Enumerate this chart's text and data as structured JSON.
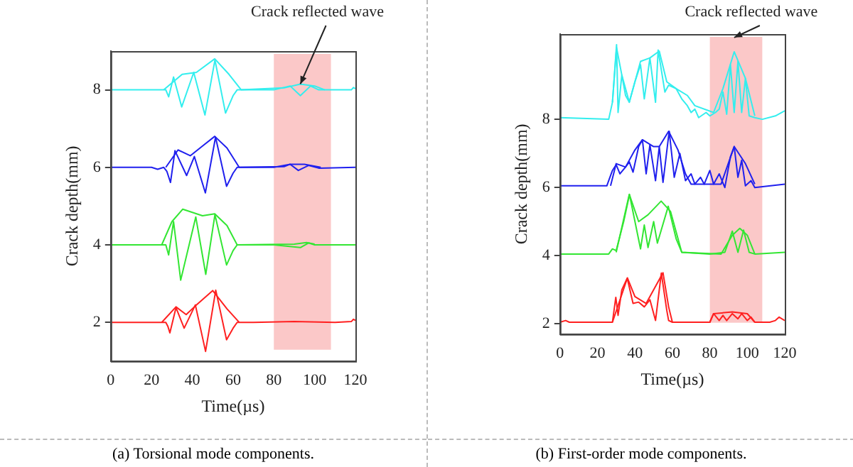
{
  "chart_data": [
    {
      "type": "line",
      "xlabel": "Time(µs)",
      "ylabel": "Crack depth(mm)",
      "xlim": [
        0,
        120
      ],
      "xticks": [
        0,
        20,
        40,
        60,
        80,
        100,
        120
      ],
      "ylim": [
        1,
        9
      ],
      "yticks": [
        2,
        4,
        6,
        8
      ],
      "grid": false,
      "legend": false,
      "marker": "none",
      "line_style": "solid",
      "bands": [
        {
          "axis": "x",
          "from": 80,
          "to": 108,
          "color": "#fbc8c8"
        }
      ],
      "annotations": [
        {
          "text": "Crack reflected wave",
          "x": 93,
          "y": 8.15
        },
        "(a) Torsional mode components."
      ],
      "series": [
        {
          "color": "#ff2020",
          "x": [
            0,
            25,
            27,
            28,
            29,
            32,
            36,
            41.5,
            46.5,
            51.5,
            56.8,
            60,
            62,
            70,
            90,
            110,
            118,
            119,
            120
          ],
          "values": [
            2,
            2,
            2,
            1.9,
            1.73,
            2.38,
            1.85,
            2.45,
            1.25,
            2.83,
            1.55,
            1.85,
            2,
            2,
            2.02,
            2,
            2.02,
            2.08,
            2.05
          ]
        },
        {
          "color": "#ff2020",
          "x": [
            25,
            32,
            37,
            41,
            50,
            57,
            63
          ],
          "values": [
            2,
            2.4,
            2.2,
            2.4,
            2.82,
            2.35,
            2
          ]
        },
        {
          "color": "#33e633",
          "x": [
            0,
            25,
            27,
            28.4,
            30.8,
            34.3,
            41.7,
            46.6,
            51.1,
            56.8,
            60,
            62,
            80,
            93,
            97,
            100,
            120
          ],
          "values": [
            4,
            4,
            4,
            3.74,
            4.6,
            3.09,
            4.72,
            3.24,
            4.78,
            3.48,
            3.85,
            4,
            4,
            3.93,
            4.05,
            4,
            4
          ]
        },
        {
          "color": "#33e633",
          "x": [
            25,
            30,
            35.3,
            45,
            51,
            57,
            62,
            90,
            96,
            100
          ],
          "values": [
            4,
            4.6,
            4.92,
            4.75,
            4.8,
            4.5,
            4,
            4.02,
            4.06,
            4.02
          ]
        },
        {
          "color": "#2020ee",
          "x": [
            0,
            20,
            23,
            26,
            27.5,
            29.3,
            31.5,
            37.2,
            41,
            46.4,
            51.4,
            56.8,
            60,
            62,
            80,
            88,
            92,
            97,
            102,
            120
          ],
          "values": [
            6,
            6,
            5.95,
            6,
            5.9,
            5.61,
            6.43,
            5.79,
            6.28,
            5.34,
            6.78,
            5.51,
            5.85,
            6,
            6,
            6.08,
            5.92,
            6.05,
            5.98,
            6
          ]
        },
        {
          "color": "#2020ee",
          "x": [
            27,
            33,
            39,
            45,
            51,
            57,
            63,
            85,
            88,
            95,
            103
          ],
          "values": [
            6,
            6.45,
            6.3,
            6.55,
            6.8,
            6.5,
            6,
            6.02,
            6.08,
            6.08,
            6
          ]
        },
        {
          "color": "#33eeee",
          "x": [
            0,
            25,
            27,
            28.4,
            30.8,
            34.8,
            40.7,
            46.2,
            51.1,
            56.3,
            60,
            62,
            80,
            88,
            93,
            98,
            102,
            118,
            119,
            120
          ],
          "values": [
            8,
            8,
            8,
            7.82,
            8.33,
            7.56,
            8.45,
            7.35,
            8.77,
            7.4,
            7.85,
            8,
            8,
            8.1,
            7.85,
            8.1,
            8,
            8,
            8.06,
            8.03
          ]
        },
        {
          "color": "#33eeee",
          "x": [
            26,
            35,
            42,
            51,
            58,
            64,
            85,
            93,
            100,
            105
          ],
          "values": [
            8,
            8.4,
            8.45,
            8.8,
            8.4,
            8,
            8.05,
            8.15,
            8.1,
            8
          ]
        }
      ]
    },
    {
      "type": "line",
      "xlabel": "Time(µs)",
      "ylabel": "Crack depth(mm)",
      "xlim": [
        0,
        120
      ],
      "xticks": [
        0,
        20,
        40,
        60,
        80,
        100,
        120
      ],
      "ylim": [
        1.7,
        10.5
      ],
      "yticks": [
        2,
        4,
        6,
        8
      ],
      "grid": false,
      "legend": false,
      "marker": "none",
      "line_style": "solid",
      "bands": [
        {
          "axis": "x",
          "from": 80,
          "to": 108,
          "color": "#fbc8c8"
        }
      ],
      "annotations": [
        {
          "text": "Crack reflected wave",
          "x": 93,
          "y": 10.4
        },
        "(b) First-order mode components."
      ],
      "series": [
        {
          "color": "#ff2020",
          "x": [
            0,
            3,
            5,
            28,
            29.8,
            31,
            33,
            35.9,
            39,
            42,
            45,
            48,
            51,
            54.1,
            57,
            58,
            60,
            80,
            82,
            85,
            87,
            89,
            92,
            95,
            97,
            100,
            102,
            104,
            112,
            115,
            117,
            120
          ],
          "values": [
            2.05,
            2.1,
            2.05,
            2.05,
            2.78,
            2.25,
            3,
            3.34,
            2.6,
            2.64,
            2.5,
            2.71,
            2.1,
            3.49,
            2.4,
            2.1,
            2.05,
            2.05,
            2.3,
            2.1,
            2.25,
            2.1,
            2.3,
            2.15,
            2.3,
            2.1,
            2.2,
            2.05,
            2.05,
            2.1,
            2.2,
            2.1
          ]
        },
        {
          "color": "#ff2020",
          "x": [
            28,
            36,
            40,
            46,
            55,
            58,
            60,
            80,
            82,
            92,
            100,
            104
          ],
          "values": [
            2.05,
            3.35,
            2.8,
            2.6,
            3.5,
            2.5,
            2.05,
            2.05,
            2.3,
            2.35,
            2.3,
            2.05
          ]
        },
        {
          "color": "#33e633",
          "x": [
            0,
            26,
            28,
            30,
            34,
            37.1,
            43,
            45,
            47,
            50,
            52,
            57.8,
            62,
            65,
            80,
            88,
            92,
            95,
            98,
            101,
            104,
            120
          ],
          "values": [
            4.05,
            4.05,
            4.2,
            4.15,
            5,
            5.79,
            4.2,
            4.9,
            4.24,
            5,
            4.37,
            5.45,
            4.5,
            4.1,
            4.05,
            4.1,
            4.72,
            4.1,
            4.75,
            4.1,
            4.05,
            4.1
          ]
        },
        {
          "color": "#33e633",
          "x": [
            30,
            37,
            42,
            47,
            54,
            59,
            63,
            65,
            86,
            92,
            96,
            100,
            104
          ],
          "values": [
            4.1,
            5.8,
            5,
            5.2,
            5.6,
            5.3,
            4.5,
            4.1,
            4.05,
            4.6,
            4.8,
            4.6,
            4.05
          ]
        },
        {
          "color": "#2020ee",
          "x": [
            0,
            25,
            28,
            30,
            32,
            35,
            37,
            39,
            42,
            44,
            46,
            48,
            51,
            53,
            55,
            58.3,
            61,
            64,
            67,
            70,
            72,
            75,
            77,
            80,
            82,
            85,
            88,
            91,
            93,
            95,
            97,
            99,
            102,
            104,
            120
          ],
          "values": [
            6.05,
            6.05,
            6.5,
            6.67,
            6.4,
            6.6,
            6.75,
            6.45,
            7.2,
            7.4,
            6.4,
            7.25,
            6.2,
            7.2,
            6.15,
            7.65,
            6.3,
            7,
            6.2,
            6.4,
            6.1,
            6.3,
            6.1,
            6.5,
            6.1,
            6.4,
            6,
            6.9,
            7.2,
            6.3,
            6.8,
            6.05,
            6.2,
            6,
            6.1
          ]
        },
        {
          "color": "#2020ee",
          "x": [
            27,
            30,
            35,
            40,
            44,
            50,
            53,
            58,
            63,
            67,
            70,
            86,
            93,
            99,
            104
          ],
          "values": [
            6.05,
            6.7,
            6.6,
            7.1,
            7.4,
            7.2,
            7.2,
            7.65,
            7.1,
            6.4,
            6.1,
            6.1,
            7.2,
            6.7,
            6.1
          ]
        },
        {
          "color": "#33eeee",
          "x": [
            0,
            26,
            28,
            30.2,
            31,
            33,
            35,
            37,
            40,
            43,
            45,
            48,
            51,
            52.4,
            56,
            58,
            62,
            65,
            68,
            70,
            72,
            74,
            78,
            80,
            83,
            85,
            87,
            89,
            91,
            93,
            95,
            97,
            99,
            101,
            104,
            108,
            115,
            120
          ],
          "values": [
            8.05,
            8,
            8.5,
            10.19,
            8.2,
            9.3,
            8.7,
            8.5,
            9.1,
            9.6,
            8.6,
            9.8,
            8.5,
            10.03,
            8.8,
            9,
            8.9,
            8.6,
            8.4,
            8.2,
            8.3,
            8.05,
            8.2,
            8.1,
            8.2,
            8.3,
            8.8,
            8.15,
            9.6,
            8.2,
            9.7,
            8.2,
            9.2,
            8.1,
            8.05,
            8,
            8.1,
            8.25
          ]
        },
        {
          "color": "#33eeee",
          "x": [
            28,
            30.2,
            33,
            37,
            43,
            48,
            53,
            57,
            62,
            68,
            72,
            82,
            87,
            93,
            99,
            104
          ],
          "values": [
            8.5,
            10.1,
            9.3,
            8.5,
            9.7,
            9.8,
            10,
            9.1,
            8.9,
            8.7,
            8.4,
            8.2,
            8.9,
            9.98,
            9.2,
            8.1
          ]
        }
      ]
    }
  ]
}
